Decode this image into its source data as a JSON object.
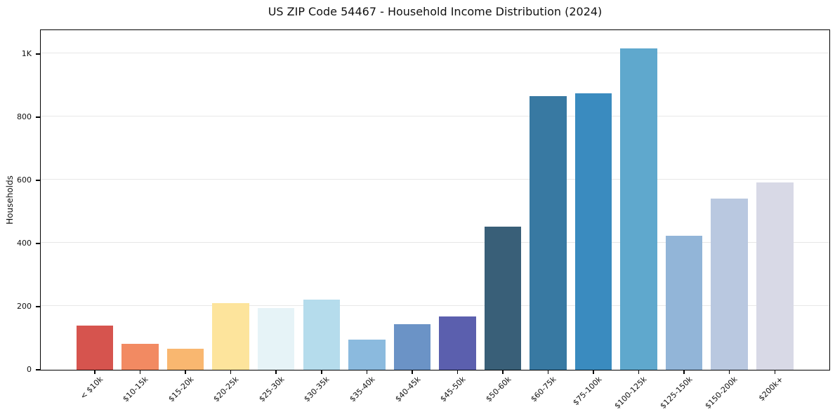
{
  "chart_data": {
    "type": "bar",
    "title": "US ZIP Code 54467 - Household Income Distribution (2024)",
    "xlabel": "",
    "ylabel": "Households",
    "categories": [
      "< $10k",
      "$10-15k",
      "$15-20k",
      "$20-25k",
      "$25-30k",
      "$30-35k",
      "$35-40k",
      "$40-45k",
      "$45-50k",
      "$50-60k",
      "$60-75k",
      "$75-100k",
      "$100-125k",
      "$125-150k",
      "$150-200k",
      "$200k+"
    ],
    "values": [
      140,
      82,
      66,
      210,
      195,
      222,
      95,
      144,
      168,
      452,
      866,
      875,
      1018,
      424,
      541,
      593
    ],
    "bar_colors": [
      "#d6544e",
      "#f28a62",
      "#f9b770",
      "#fde49c",
      "#e6f3f7",
      "#b5dcec",
      "#8bbade",
      "#6b93c6",
      "#5b5fae",
      "#395f78",
      "#3879a2",
      "#3a8bbf",
      "#5fa8cd",
      "#92b5d8",
      "#b9c8e0",
      "#d8d9e6"
    ],
    "yticks": {
      "values": [
        0,
        200,
        400,
        600,
        800,
        1000
      ],
      "labels": [
        "0",
        "200",
        "400",
        "600",
        "800",
        "1K"
      ]
    },
    "ylim": [
      0,
      1075
    ],
    "grid": "horizontal",
    "legend": "none",
    "background": "#ffffff",
    "axis_color": "#000000",
    "gridline_color": "#e7e7e7",
    "text_color": "#111111"
  }
}
